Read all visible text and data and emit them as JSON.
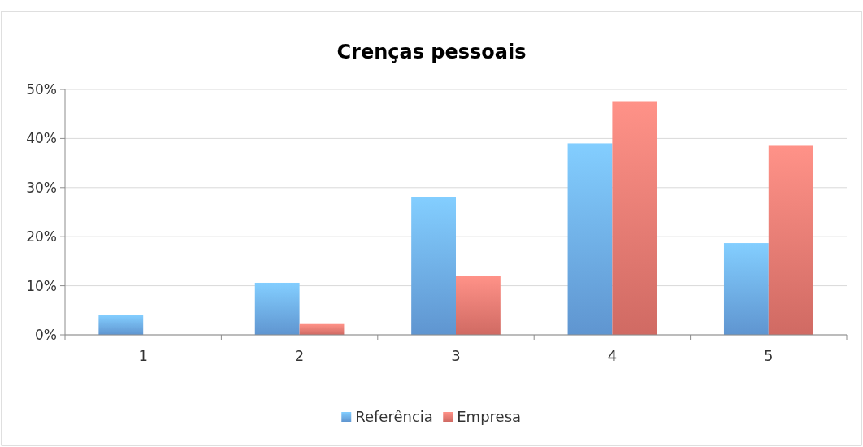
{
  "chart_data": {
    "type": "bar",
    "title": "Crenças pessoais",
    "categories": [
      "1",
      "2",
      "3",
      "4",
      "5"
    ],
    "series": [
      {
        "name": "Referência",
        "color": "#6aa6e8",
        "values": [
          4,
          10.6,
          28,
          39,
          18.7
        ]
      },
      {
        "name": "Empresa",
        "color": "#e8766e",
        "values": [
          0,
          2.2,
          12,
          47.6,
          38.5
        ]
      }
    ],
    "ylim": [
      0,
      50
    ],
    "yticks": [
      {
        "value": 0,
        "label": "0%"
      },
      {
        "value": 10,
        "label": "10%"
      },
      {
        "value": 20,
        "label": "20%"
      },
      {
        "value": 30,
        "label": "30%"
      },
      {
        "value": 40,
        "label": "40%"
      },
      {
        "value": 50,
        "label": "50%"
      }
    ],
    "grid": "y",
    "legend": "bottom"
  }
}
